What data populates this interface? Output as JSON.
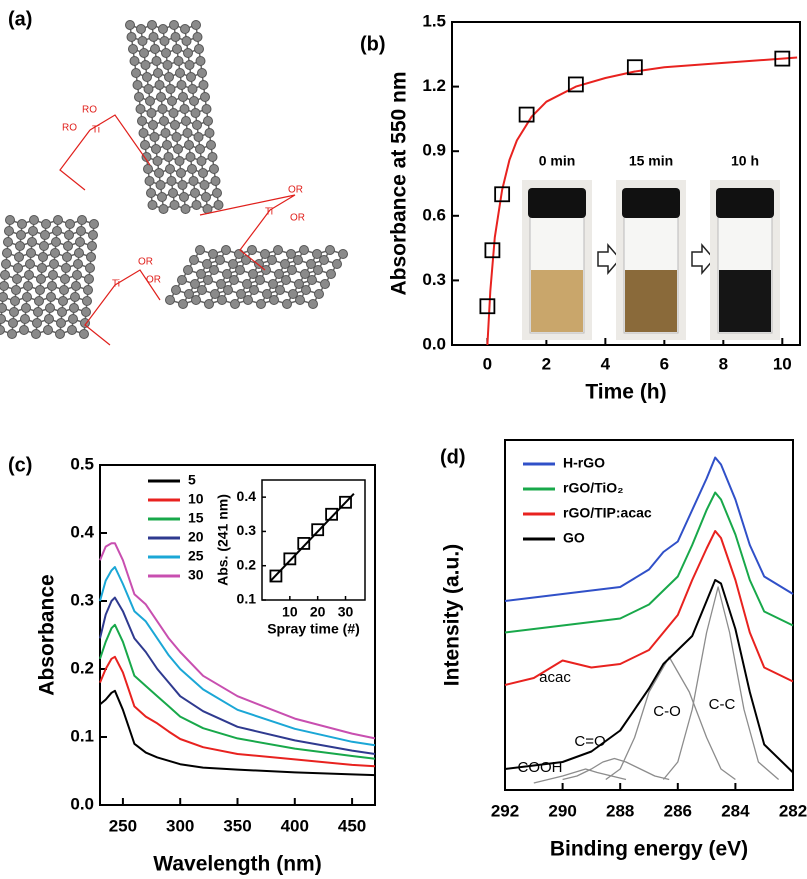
{
  "figure": {
    "panel_labels": [
      "(a)",
      "(b)",
      "(c)",
      "(d)"
    ],
    "molecule_labels": [
      "RO",
      "RO",
      "Ti",
      "OR",
      "OR",
      "Ti",
      "OR",
      "OR",
      "Ti"
    ]
  },
  "chart_data": [
    {
      "type": "scatter",
      "xlabel": "Time (h)",
      "ylabel": "Absorbance at 550 nm",
      "x": [
        0,
        0.17,
        0.5,
        1.33,
        3,
        5,
        10
      ],
      "values": [
        0.18,
        0.44,
        0.7,
        1.07,
        1.21,
        1.29,
        1.33
      ],
      "color": "#000000",
      "fit": {
        "color": "#e8221f",
        "x": [
          0,
          0.1,
          0.25,
          0.5,
          0.75,
          1,
          1.5,
          2,
          3,
          4,
          5,
          6,
          8,
          10,
          10.5
        ],
        "values": [
          0,
          0.25,
          0.5,
          0.72,
          0.86,
          0.95,
          1.06,
          1.13,
          1.2,
          1.24,
          1.27,
          1.29,
          1.31,
          1.33,
          1.335
        ]
      },
      "xlim": [
        -1.2,
        10.6
      ],
      "xticks": [
        0,
        2,
        4,
        6,
        8,
        10
      ],
      "ylim": [
        0,
        1.5
      ],
      "yticks": [
        {
          "value": 0,
          "label": "0.0"
        },
        0.3,
        0.6,
        0.9,
        1.2,
        1.5
      ],
      "inset_labels": [
        "0 min",
        "15 min",
        "10 h"
      ]
    },
    {
      "type": "line",
      "xlabel": "Wavelength (nm)",
      "ylabel": "Absorbance",
      "legend": "upper left",
      "x": [
        230,
        235,
        240,
        243,
        250,
        260,
        270,
        280,
        290,
        300,
        320,
        350,
        400,
        450,
        470
      ],
      "series": [
        {
          "name": "5",
          "color": "#000000",
          "values": [
            0.148,
            0.155,
            0.165,
            0.168,
            0.14,
            0.09,
            0.077,
            0.07,
            0.065,
            0.06,
            0.055,
            0.052,
            0.048,
            0.045,
            0.044
          ]
        },
        {
          "name": "10",
          "color": "#e8221f",
          "values": [
            0.18,
            0.2,
            0.215,
            0.218,
            0.195,
            0.145,
            0.13,
            0.12,
            0.108,
            0.097,
            0.085,
            0.075,
            0.067,
            0.059,
            0.057
          ]
        },
        {
          "name": "15",
          "color": "#18a84a",
          "values": [
            0.215,
            0.24,
            0.26,
            0.265,
            0.24,
            0.19,
            0.175,
            0.16,
            0.145,
            0.13,
            0.113,
            0.098,
            0.083,
            0.072,
            0.068
          ]
        },
        {
          "name": "20",
          "color": "#2f3a8f",
          "values": [
            0.245,
            0.28,
            0.3,
            0.305,
            0.285,
            0.245,
            0.225,
            0.2,
            0.18,
            0.16,
            0.138,
            0.115,
            0.095,
            0.08,
            0.075
          ]
        },
        {
          "name": "25",
          "color": "#1ba7d6",
          "values": [
            0.3,
            0.33,
            0.345,
            0.35,
            0.325,
            0.285,
            0.27,
            0.245,
            0.22,
            0.2,
            0.17,
            0.14,
            0.112,
            0.093,
            0.088
          ]
        },
        {
          "name": "30",
          "color": "#c84fb0",
          "values": [
            0.36,
            0.38,
            0.385,
            0.385,
            0.36,
            0.31,
            0.295,
            0.27,
            0.245,
            0.225,
            0.19,
            0.16,
            0.127,
            0.105,
            0.098
          ]
        }
      ],
      "xlim": [
        230,
        470
      ],
      "xticks": [
        250,
        300,
        350,
        400,
        450
      ],
      "ylim": [
        0,
        0.5
      ],
      "yticks": [
        {
          "value": 0,
          "label": "0.0"
        },
        0.1,
        0.2,
        0.3,
        0.4,
        0.5
      ],
      "inset": {
        "type": "scatter",
        "xlabel": "Spray time (#)",
        "ylabel": "Abs. (241 nm)",
        "x": [
          5,
          10,
          15,
          20,
          25,
          30
        ],
        "values": [
          0.17,
          0.22,
          0.265,
          0.305,
          0.35,
          0.385
        ],
        "color": "#000000",
        "fit": {
          "color": "#000000",
          "x": [
            3,
            33
          ],
          "values": [
            0.155,
            0.41
          ]
        },
        "xlim": [
          0,
          37
        ],
        "xticks": [
          10,
          20,
          30
        ],
        "ylim": [
          0.1,
          0.45
        ],
        "yticks": [
          0.1,
          0.2,
          0.3,
          0.4
        ]
      }
    },
    {
      "type": "line",
      "xlabel": "Binding energy (eV)",
      "ylabel": "Intensity (a.u.)",
      "legend": "upper left",
      "x": [
        292,
        291,
        290,
        289,
        288,
        287,
        286.5,
        286,
        285.5,
        285,
        284.7,
        284.5,
        284,
        283.5,
        283,
        282
      ],
      "series": [
        {
          "name": "H-rGO",
          "color": "#3050c8",
          "values": [
            54,
            55,
            56,
            57,
            58,
            63,
            68,
            71,
            80,
            89,
            95,
            93,
            83,
            70,
            61,
            56
          ]
        },
        {
          "name": "rGO/TiO₂",
          "color": "#18a84a",
          "values": [
            45,
            46,
            47,
            48,
            49,
            53,
            57,
            61,
            70,
            80,
            85,
            83,
            73,
            60,
            51,
            47
          ]
        },
        {
          "name": "rGO/TIP:acac",
          "color": "#e8221f",
          "values": [
            30,
            32,
            37,
            35,
            36,
            40,
            45,
            50,
            60,
            69,
            74,
            72,
            60,
            45,
            35,
            31
          ]
        },
        {
          "name": "GO",
          "color": "#000000",
          "values": [
            6,
            7,
            8,
            11,
            17,
            29,
            36,
            40,
            44,
            54,
            60,
            59,
            46,
            28,
            13,
            5
          ]
        }
      ],
      "components": [
        {
          "label": "C-C",
          "color": "#8c8c8c",
          "x": [
            286.5,
            286,
            285.5,
            285,
            284.6,
            284.2,
            283.7,
            283.2,
            282.5
          ],
          "values": [
            3,
            8,
            23,
            45,
            58,
            45,
            23,
            8,
            3
          ]
        },
        {
          "label": "C-O",
          "color": "#8c8c8c",
          "x": [
            288.5,
            288,
            287.5,
            287,
            286.3,
            285.6,
            285,
            284.5,
            284
          ],
          "values": [
            3,
            6,
            15,
            28,
            38,
            28,
            15,
            6,
            3
          ]
        },
        {
          "label": "C=O",
          "color": "#8c8c8c",
          "x": [
            290,
            289.5,
            289,
            288.6,
            288.2,
            287.8,
            287.3,
            286.8,
            286.3
          ],
          "values": [
            3,
            4,
            6,
            8,
            9,
            8,
            6,
            4,
            3
          ]
        },
        {
          "label": "COOH",
          "color": "#8c8c8c",
          "x": [
            291,
            290.5,
            290,
            289.6,
            289.2,
            288.8,
            288.3,
            287.8
          ],
          "values": [
            2,
            3,
            4,
            5,
            6,
            5,
            4,
            3
          ]
        }
      ],
      "annotation": "acac",
      "xlim": [
        292,
        282
      ],
      "xticks": [
        292,
        290,
        288,
        286,
        284,
        282
      ],
      "ylim": [
        0,
        100
      ]
    }
  ]
}
